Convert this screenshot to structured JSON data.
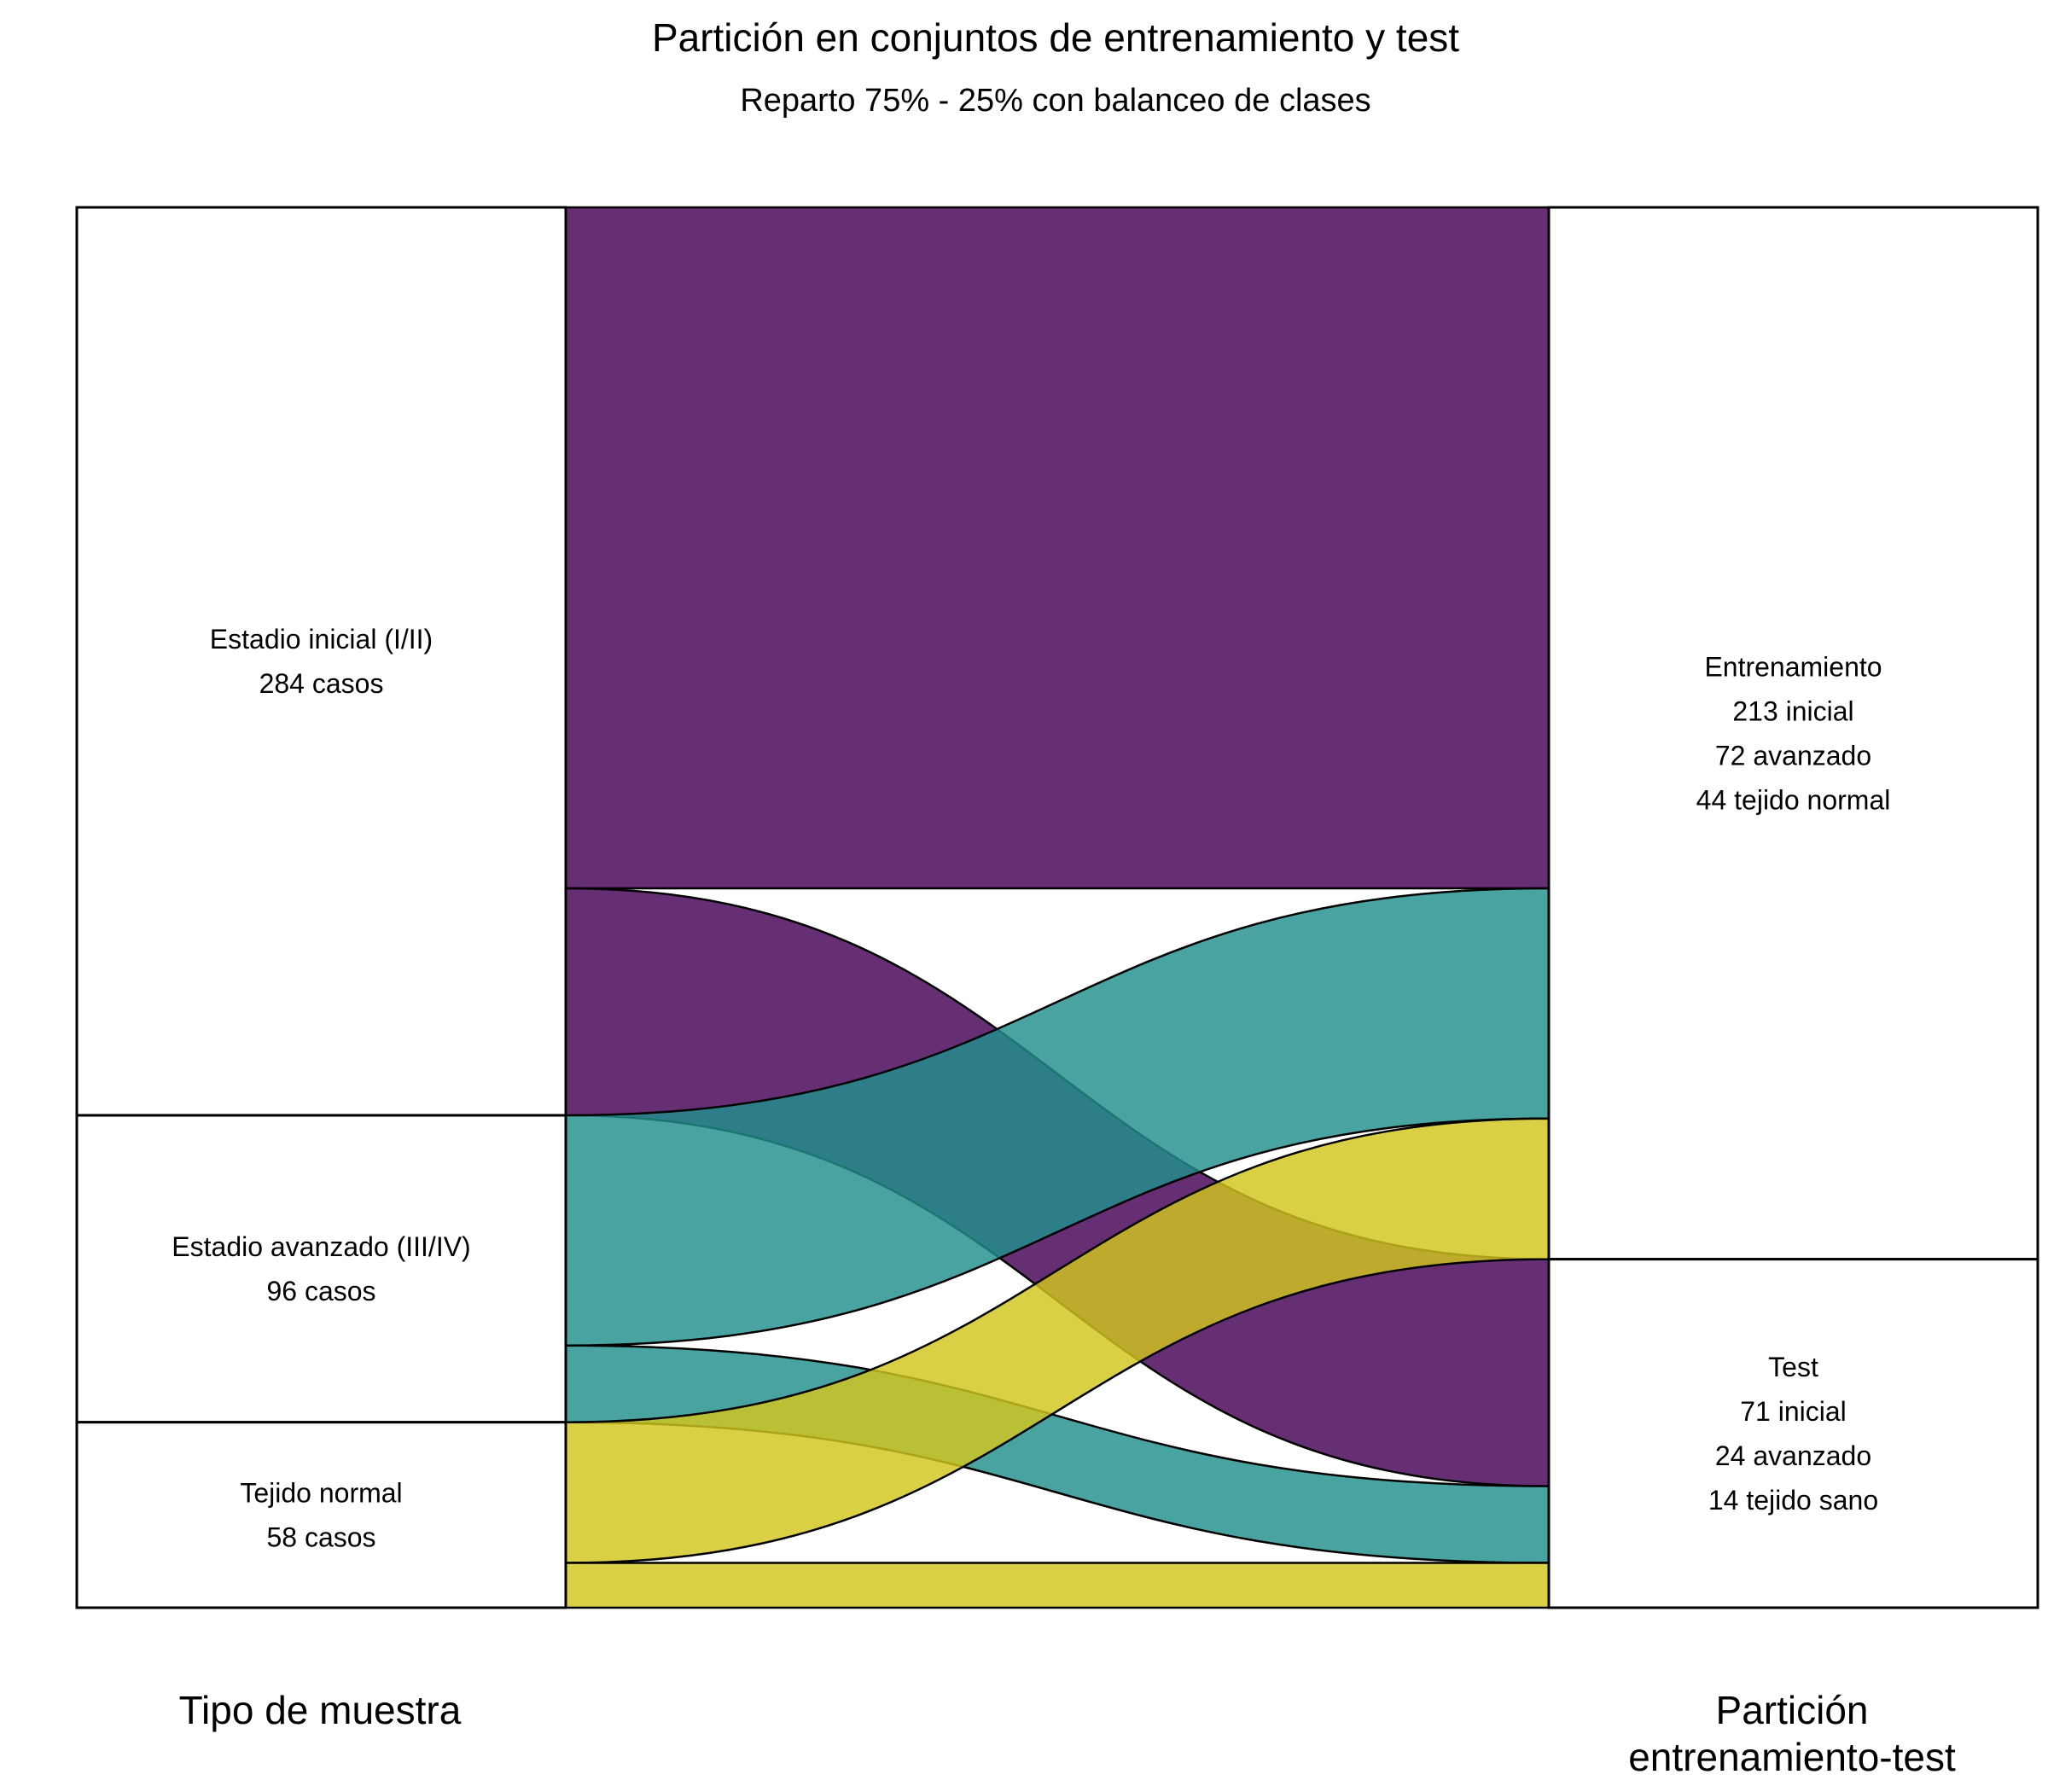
{
  "title": "Partición en conjuntos de entrenamiento y test",
  "subtitle": "Reparto 75% - 25% con balanceo de clases",
  "axes": [
    "Tipo de muestra",
    "Partición",
    "entrenamiento-test"
  ],
  "colors": {
    "inicial": "#440154",
    "avanzado": "#21908C",
    "normal": "#D2C61D",
    "flow_opacity": 0.82
  },
  "chart_data": {
    "type": "alluvial",
    "left_nodes": [
      {
        "id": "inicial",
        "lines": [
          "Estadio inicial (I/II)",
          "284 casos"
        ],
        "value": 284
      },
      {
        "id": "avanzado",
        "lines": [
          "Estadio avanzado (III/IV)",
          "96 casos"
        ],
        "value": 96
      },
      {
        "id": "normal",
        "lines": [
          "Tejido normal",
          "58 casos"
        ],
        "value": 58
      }
    ],
    "right_nodes": [
      {
        "id": "train",
        "lines": [
          "Entrenamiento",
          "213 inicial",
          "72 avanzado",
          "44 tejido normal"
        ],
        "value": 329
      },
      {
        "id": "test",
        "lines": [
          "Test",
          "71 inicial",
          "24 avanzado",
          "14 tejido sano"
        ],
        "value": 109
      }
    ],
    "flows": [
      {
        "source": "inicial",
        "target": "train",
        "value": 213
      },
      {
        "source": "inicial",
        "target": "test",
        "value": 71
      },
      {
        "source": "avanzado",
        "target": "train",
        "value": 72
      },
      {
        "source": "avanzado",
        "target": "test",
        "value": 24
      },
      {
        "source": "normal",
        "target": "train",
        "value": 44
      },
      {
        "source": "normal",
        "target": "test",
        "value": 14
      }
    ],
    "flow_order": [
      "inicial-train",
      "inicial-test",
      "avanzado-train",
      "avanzado-test",
      "normal-train",
      "normal-test"
    ],
    "total": 438
  }
}
